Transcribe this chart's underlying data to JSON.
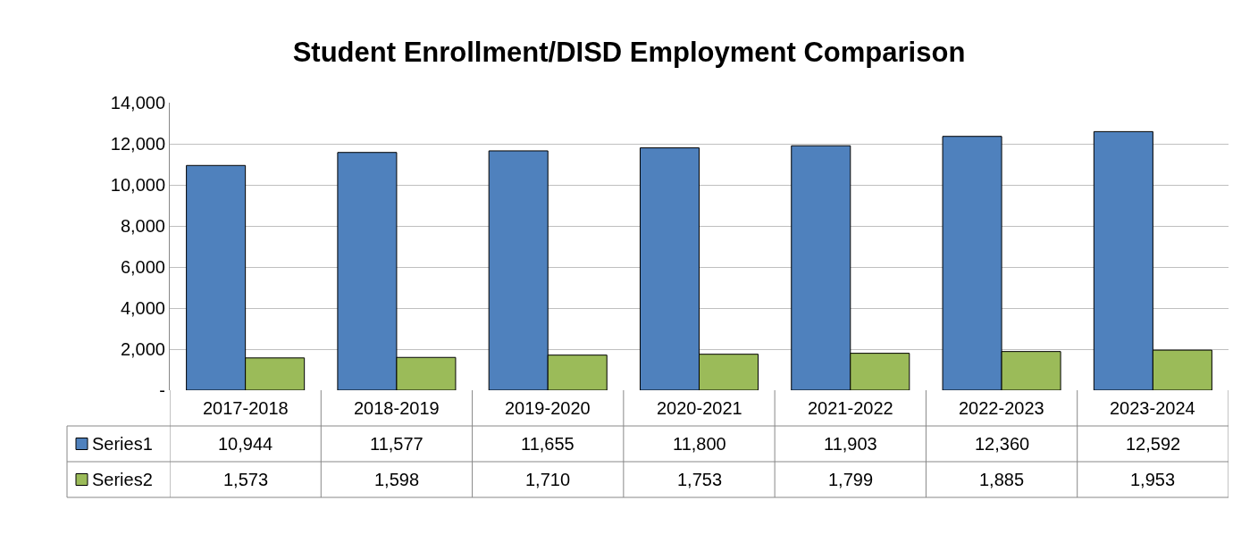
{
  "chart_data": {
    "type": "bar",
    "title": "Student Enrollment/DISD Employment Comparison",
    "categories": [
      "2017-2018",
      "2018-2019",
      "2019-2020",
      "2020-2021",
      "2021-2022",
      "2022-2023",
      "2023-2024"
    ],
    "series": [
      {
        "name": "Series1",
        "color": "#4f81bd",
        "values": [
          10944,
          11577,
          11655,
          11800,
          11903,
          12360,
          12592
        ],
        "value_labels": [
          "10,944",
          "11,577",
          "11,655",
          "11,800",
          "11,903",
          "12,360",
          "12,592"
        ]
      },
      {
        "name": "Series2",
        "color": "#9bbb59",
        "values": [
          1573,
          1598,
          1710,
          1753,
          1799,
          1885,
          1953
        ],
        "value_labels": [
          "1,573",
          "1,598",
          "1,710",
          "1,753",
          "1,799",
          "1,885",
          "1,953"
        ]
      }
    ],
    "ylim": [
      0,
      14000
    ],
    "yticks": [
      {
        "value": 0,
        "label": "-"
      },
      {
        "value": 2000,
        "label": "2,000"
      },
      {
        "value": 4000,
        "label": "4,000"
      },
      {
        "value": 6000,
        "label": "6,000"
      },
      {
        "value": 8000,
        "label": "8,000"
      },
      {
        "value": 10000,
        "label": "10,000"
      },
      {
        "value": 12000,
        "label": "12,000"
      },
      {
        "value": 14000,
        "label": "14,000"
      }
    ],
    "grid": "y",
    "legend": "bottom"
  }
}
